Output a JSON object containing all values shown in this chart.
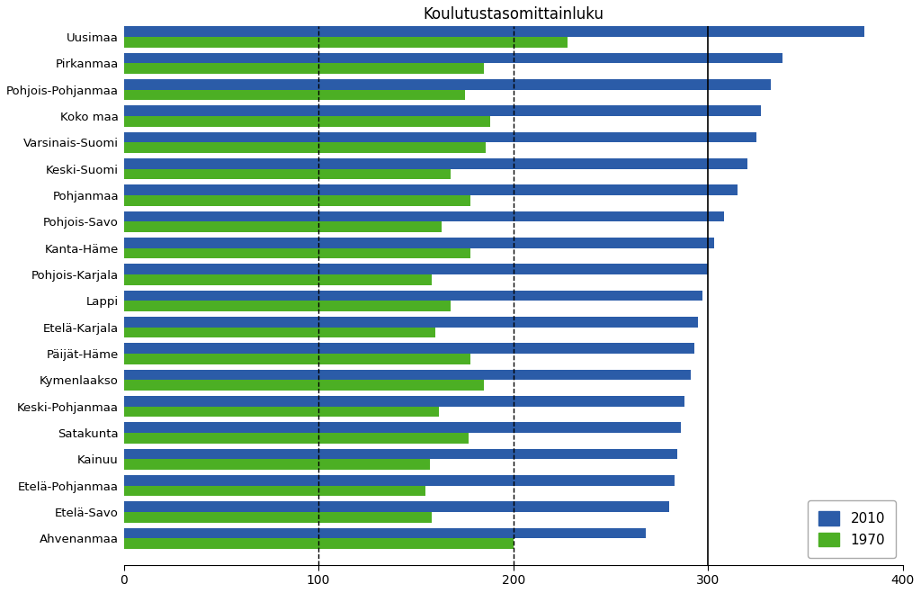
{
  "title": "Koulutustasomittainluku",
  "regions": [
    "Uusimaa",
    "Pirkanmaa",
    "Pohjois-Pohjanmaa",
    "Koko maa",
    "Varsinais-Suomi",
    "Keski-Suomi",
    "Pohjanmaa",
    "Pohjois-Savo",
    "Kanta-Häme",
    "Pohjois-Karjala",
    "Lappi",
    "Etelä-Karjala",
    "Päijät-Häme",
    "Kymenlaakso",
    "Keski-Pohjanmaa",
    "Satakunta",
    "Kainuu",
    "Etelä-Pohjanmaa",
    "Etelä-Savo",
    "Ahvenanmaa"
  ],
  "values_2010": [
    380,
    338,
    332,
    327,
    325,
    320,
    315,
    308,
    303,
    300,
    297,
    295,
    293,
    291,
    288,
    286,
    284,
    283,
    280,
    268
  ],
  "values_1970": [
    228,
    185,
    175,
    188,
    186,
    168,
    178,
    163,
    178,
    158,
    168,
    160,
    178,
    185,
    162,
    177,
    157,
    155,
    158,
    200
  ],
  "color_2010": "#2B5CA8",
  "color_1970": "#4CAF24",
  "xlim": [
    0,
    400
  ],
  "xticks": [
    0,
    100,
    200,
    300,
    400
  ],
  "vlines": [
    100,
    200,
    300
  ],
  "vline_styles": [
    "dashed",
    "dashed",
    "solid"
  ],
  "bar_height": 0.4,
  "figsize": [
    10.24,
    6.59
  ],
  "dpi": 100
}
